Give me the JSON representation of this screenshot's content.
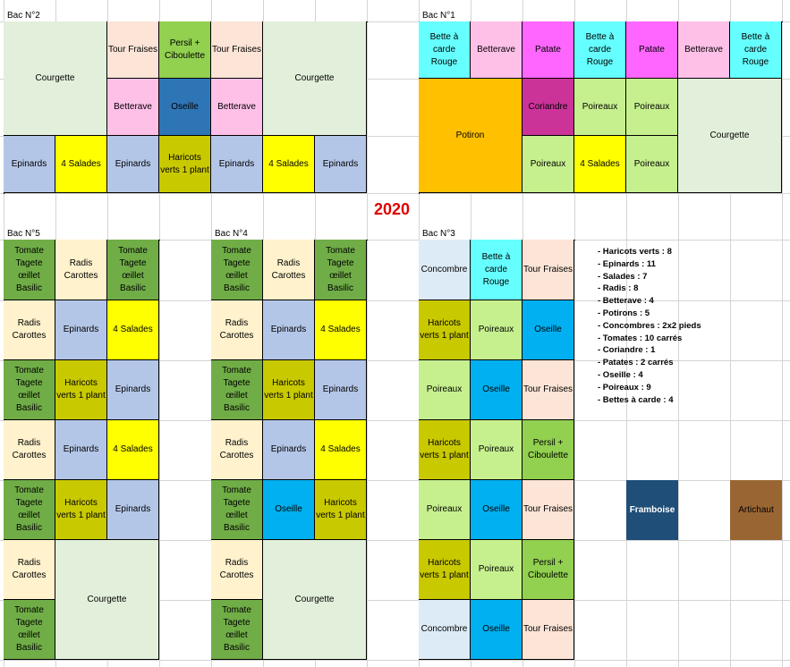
{
  "year": "2020",
  "colors": {
    "courgette": "#e2efda",
    "tour_fraises": "#fce4d6",
    "persil": "#92d050",
    "betterave": "#ffc0e8",
    "oseille_dark": "#2e75b6",
    "oseille": "#00b0f0",
    "epinards": "#b4c6e7",
    "salades": "#ffff00",
    "haricots": "#c9c900",
    "bette": "#66ffff",
    "patate": "#ff66ff",
    "potiron": "#ffc000",
    "coriandre": "#cc3399",
    "poireaux": "#c6f08e",
    "tomate": "#70ad47",
    "radis": "#fff2cc",
    "concombre": "#ddebf7",
    "framboise": "#1f4e78",
    "artichaut": "#996633"
  },
  "beds": {
    "bac2": {
      "title": "Bac N°2",
      "cells": {
        "courgette_left": "Courgette",
        "tour_fraises_1": "Tour Fraises",
        "persil": "Persil + Ciboulette",
        "tour_fraises_2": "Tour Fraises",
        "courgette_right": "Courgette",
        "betterave_1": "Betterave",
        "oseille": "Oseille",
        "betterave_2": "Betterave",
        "epinards_1": "Epinards",
        "salades_1": "4 Salades",
        "epinards_2": "Epinards",
        "haricots": "Haricots verts 1 plant",
        "epinards_3": "Epinards",
        "salades_2": "4 Salades",
        "epinards_4": "Epinards"
      }
    },
    "bac1": {
      "title": "Bac N°1",
      "cells": {
        "bette_1": "Bette à carde Rouge",
        "betterave_1": "Betterave",
        "patate_1": "Patate",
        "bette_2": "Bette à carde Rouge",
        "patate_2": "Patate",
        "betterave_2": "Betterave",
        "bette_3": "Bette à carde Rouge",
        "potiron": "Potiron",
        "coriandre": "Coriandre",
        "poireaux_1": "Poireaux",
        "poireaux_2": "Poireaux",
        "courgette": "Courgette",
        "poireaux_3": "Poireaux",
        "salades": "4 Salades",
        "poireaux_4": "Poireaux"
      }
    },
    "bac5": {
      "title": "Bac N°5",
      "cells": {
        "r1c1": "Tomate Tagete œillet Basilic",
        "r1c2": "Radis Carottes",
        "r1c3": "Tomate Tagete œillet Basilic",
        "r2c1": "Radis Carottes",
        "r2c2": "Epinards",
        "r2c3": "4 Salades",
        "r3c1": "Tomate Tagete œillet Basilic",
        "r3c2": "Haricots verts 1 plant",
        "r3c3": "Epinards",
        "r4c1": "Radis Carottes",
        "r4c2": "Epinards",
        "r4c3": "4 Salades",
        "r5c1": "Tomate Tagete œillet Basilic",
        "r5c2": "Haricots verts 1 plant",
        "r5c3": "Epinards",
        "r6c1": "Radis Carottes",
        "courgette": "Courgette",
        "r7c1": "Tomate Tagete œillet Basilic"
      }
    },
    "bac4": {
      "title": "Bac N°4",
      "cells": {
        "r1c1": "Tomate Tagete œillet Basilic",
        "r1c2": "Radis Carottes",
        "r1c3": "Tomate Tagete œillet Basilic",
        "r2c1": "Radis Carottes",
        "r2c2": "Epinards",
        "r2c3": "4 Salades",
        "r3c1": "Tomate Tagete œillet Basilic",
        "r3c2": "Haricots verts 1 plant",
        "r3c3": "Epinards",
        "r4c1": "Radis Carottes",
        "r4c2": "Epinards",
        "r4c3": "4 Salades",
        "r5c1": "Tomate Tagete œillet Basilic",
        "r5c2": "Oseille",
        "r5c3": "Haricots verts 1 plant",
        "r6c1": "Radis Carottes",
        "courgette": "Courgette",
        "r7c1": "Tomate Tagete œillet Basilic"
      }
    },
    "bac3": {
      "title": "Bac N°3",
      "cells": {
        "r1c1": "Concombre",
        "r1c2": "Bette à carde Rouge",
        "r1c3": "Tour Fraises",
        "r2c1": "Haricots verts 1 plant",
        "r2c2": "Poireaux",
        "r2c3": "Oseille",
        "r3c1": "Poireaux",
        "r3c2": "Oseille",
        "r3c3": "Tour Fraises",
        "r4c1": "Haricots verts 1 plant",
        "r4c2": "Poireaux",
        "r4c3": "Persil + Ciboulette",
        "r5c1": "Poireaux",
        "r5c2": "Oseille",
        "r5c3": "Tour Fraises",
        "r6c1": "Haricots verts 1 plant",
        "r6c2": "Poireaux",
        "r6c3": "Persil + Ciboulette",
        "r7c1": "Concombre",
        "r7c2": "Oseille",
        "r7c3": "Tour Fraises"
      }
    }
  },
  "extras": {
    "framboise": "Framboise",
    "artichaut": "Artichaut"
  },
  "summary": [
    "- Haricots verts : 8",
    "- Epinards : 11",
    "- Salades : 7",
    "- Radis : 8",
    "- Betterave : 4",
    "- Potirons : 5",
    "- Concombres : 2x2 pieds",
    "- Tomates : 10 carrés",
    "- Coriandre : 1",
    "- Patates : 2 carrés",
    "- Oseille : 4",
    "- Poireaux : 9",
    "- Bettes à carde : 4"
  ]
}
